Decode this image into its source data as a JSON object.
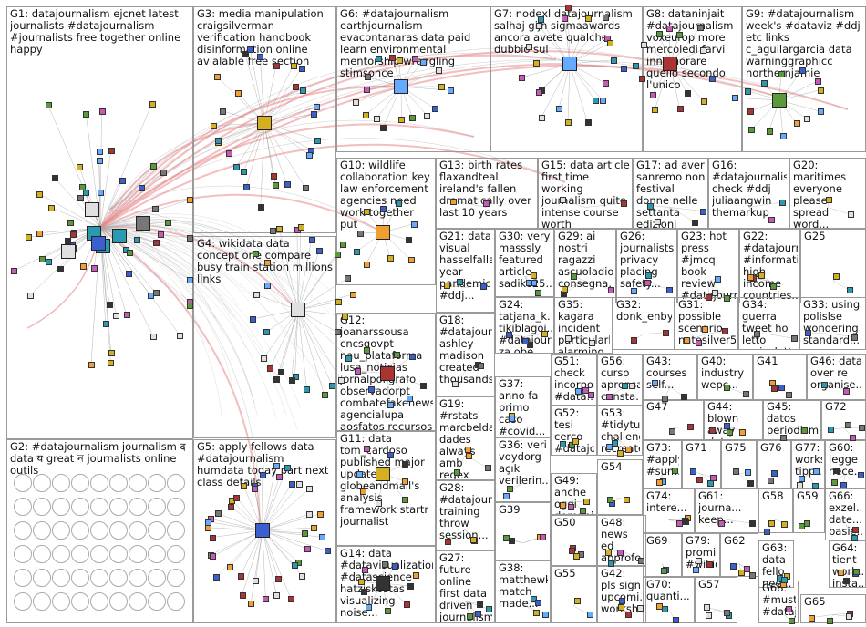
{
  "groups": [
    {
      "id": "G1",
      "title": "G1: datajournalism ejcnet latest journalists #datajournalism #journalists free together online happy"
    },
    {
      "id": "G2",
      "title": "G2: #datajournalism journalism द data य great ন journalists online outils"
    },
    {
      "id": "G3",
      "title": "G3: media manipulation craigsilverman verification handbook disinformation online avialable free section"
    },
    {
      "id": "G4",
      "title": "G4: wikidata data concept one compare busy train station millions links"
    },
    {
      "id": "G5",
      "title": "G5: apply fellows data #datajournalism humdata today part next class details"
    },
    {
      "id": "G6",
      "title": "G6: #datajournalism earthjournalism evacontanaras data paid learn environmental mentorship wrangling stimsonce"
    },
    {
      "id": "G7",
      "title": "G7: nodexl datajournalism salhaj gijn sigmaawards ancora avete qualche dubbio sul"
    },
    {
      "id": "G8",
      "title": "G8: dataninjait #datajournalism voxeurop more mercoledi farvi innamorare quello secondo l'unico"
    },
    {
      "id": "G9",
      "title": "G9: #datajournalism week's #dataviz #ddj etc links c_aguilargarcia data warninggraphicc northernjamie"
    },
    {
      "id": "G10",
      "title": "G10: wildlife collaboration key law enforcement agencies need work together put"
    },
    {
      "id": "G11",
      "title": "G11: data tom_cardoso published major update globeandmail's analysis framework startr journalist"
    },
    {
      "id": "G12",
      "title": "G12: joanarssousa cncsgovpt nau_plataforma lusa_noticias jornalpoligrafo observadorpt combatefakenews agencialupa aosfatos recursos"
    },
    {
      "id": "G13",
      "title": "G13: birth rates flaxandteal ireland's fallen dramatically over last 10 years"
    },
    {
      "id": "G14",
      "title": "G14: data #datavisualization #datascience hatziskostas visualizing noise..."
    },
    {
      "id": "G15",
      "title": "G15: data article first time working journalism quite intense course worth"
    },
    {
      "id": "G16",
      "title": "G16: #datajournalism check #ddj juliaangwin themarkup"
    },
    {
      "id": "G17",
      "title": "G17: ad aver sanremo non festival donne nelle settanta edizioni"
    },
    {
      "id": "G18",
      "title": "G18: #datajourn... ashley madison created thousands..."
    },
    {
      "id": "G19",
      "title": "G19: #rstats marcbelda... dades always amb regex rescue..."
    },
    {
      "id": "G20",
      "title": "G20: maritimes everyone please spread word..."
    },
    {
      "id": "G21",
      "title": "G21: data visual hasselfallas year pandemic #ddj..."
    },
    {
      "id": "G22",
      "title": "G22: #datajourn... #informati... high income countries..."
    },
    {
      "id": "G23",
      "title": "G23: hot press #jmcq book review #datajourn... #globalsou..."
    },
    {
      "id": "G24",
      "title": "G24: tatjana_k... tikiblagoj... #datajour... za obe rade..."
    },
    {
      "id": "G25",
      "title": "G25"
    },
    {
      "id": "G26",
      "title": "G26: journalists privacy placing safety..."
    },
    {
      "id": "G27",
      "title": "G27: future online first data driven journalism attracted..."
    },
    {
      "id": "G28",
      "title": "G28: #datajourn... training throw session..."
    },
    {
      "id": "G29",
      "title": "G29: ai nostri ragazzi ascuoladioc consegna..."
    },
    {
      "id": "G30",
      "title": "G30: very masssly featured article sadike25..."
    },
    {
      "id": "G31",
      "title": "G31: possible scenario natesilver5..."
    },
    {
      "id": "G32",
      "title": "G32: donk_enby"
    },
    {
      "id": "G33",
      "title": "G33: using polislse wondering standard..."
    },
    {
      "id": "G34",
      "title": "G34: guerra tweet ho letto enricoletta..."
    },
    {
      "id": "G35",
      "title": "G35: kagara incident particularly alarming..."
    },
    {
      "id": "G36",
      "title": "G36: veri voydorg açık verilerin..."
    },
    {
      "id": "G37",
      "title": "G37: anno fa primo caso #covid..."
    },
    {
      "id": "G38",
      "title": "G38: matthewk... match made..."
    },
    {
      "id": "G39",
      "title": "G39"
    },
    {
      "id": "G40",
      "title": "G40: industry wepc..."
    },
    {
      "id": "G41",
      "title": "G41"
    },
    {
      "id": "G42",
      "title": "G42: pls sign upcomi... worksho..."
    },
    {
      "id": "G43",
      "title": "G43: courses self..."
    },
    {
      "id": "G44",
      "title": "G44: blown away data journalism..."
    },
    {
      "id": "G45",
      "title": "G45: datos periodismo acceso..."
    },
    {
      "id": "G46",
      "title": "G46: data over re organise..."
    },
    {
      "id": "G47",
      "title": "G47"
    },
    {
      "id": "G48",
      "title": "G48: news ed approfo... nuovo..."
    },
    {
      "id": "G49",
      "title": "G49: anche oggi domani..."
    },
    {
      "id": "G50",
      "title": "G50"
    },
    {
      "id": "G51",
      "title": "G51: check incorpor... #data..."
    },
    {
      "id": "G52",
      "title": "G52: tesi cerco #datajo... ai tempi..."
    },
    {
      "id": "G53",
      "title": "G53: #tidytue... challenge recreate..."
    },
    {
      "id": "G54",
      "title": "G54"
    },
    {
      "id": "G55",
      "title": "G55"
    },
    {
      "id": "G56",
      "title": "G56: curso aprensa... consta..."
    },
    {
      "id": "G57",
      "title": "G57"
    },
    {
      "id": "G58",
      "title": "G58"
    },
    {
      "id": "G59",
      "title": "G59"
    },
    {
      "id": "G60",
      "title": "G60: legge nece..."
    },
    {
      "id": "G61",
      "title": "G61: journa... keep..."
    },
    {
      "id": "G62",
      "title": "G62"
    },
    {
      "id": "G63",
      "title": "G63: data fello... nee..."
    },
    {
      "id": "G64",
      "title": "G64: tient work... insta..."
    },
    {
      "id": "G65",
      "title": "G65"
    },
    {
      "id": "G66",
      "title": "G66: exzel... date... basie..."
    },
    {
      "id": "G67",
      "title": "G67"
    },
    {
      "id": "G68",
      "title": "G68: #must... #dataj..."
    },
    {
      "id": "G69",
      "title": "G69"
    },
    {
      "id": "G70",
      "title": "G70: quanti..."
    },
    {
      "id": "G71",
      "title": "G71"
    },
    {
      "id": "G72",
      "title": "G72"
    },
    {
      "id": "G73",
      "title": "G73: #apply #sum..."
    },
    {
      "id": "G74",
      "title": "G74: intere..."
    },
    {
      "id": "G75",
      "title": "G75"
    },
    {
      "id": "G76",
      "title": "G76"
    },
    {
      "id": "G77",
      "title": "G77: works... tipp..."
    },
    {
      "id": "G78",
      "title": "G78"
    },
    {
      "id": "G79",
      "title": "G79: promi... #wikid..."
    },
    {
      "id": "G80",
      "title": "G80: wikida... journ..."
    }
  ],
  "colors": {
    "border": "#9a9a9a",
    "edge": "#888888",
    "edge_highlight": "#e8898a",
    "node_label": "#2a6b2a"
  }
}
